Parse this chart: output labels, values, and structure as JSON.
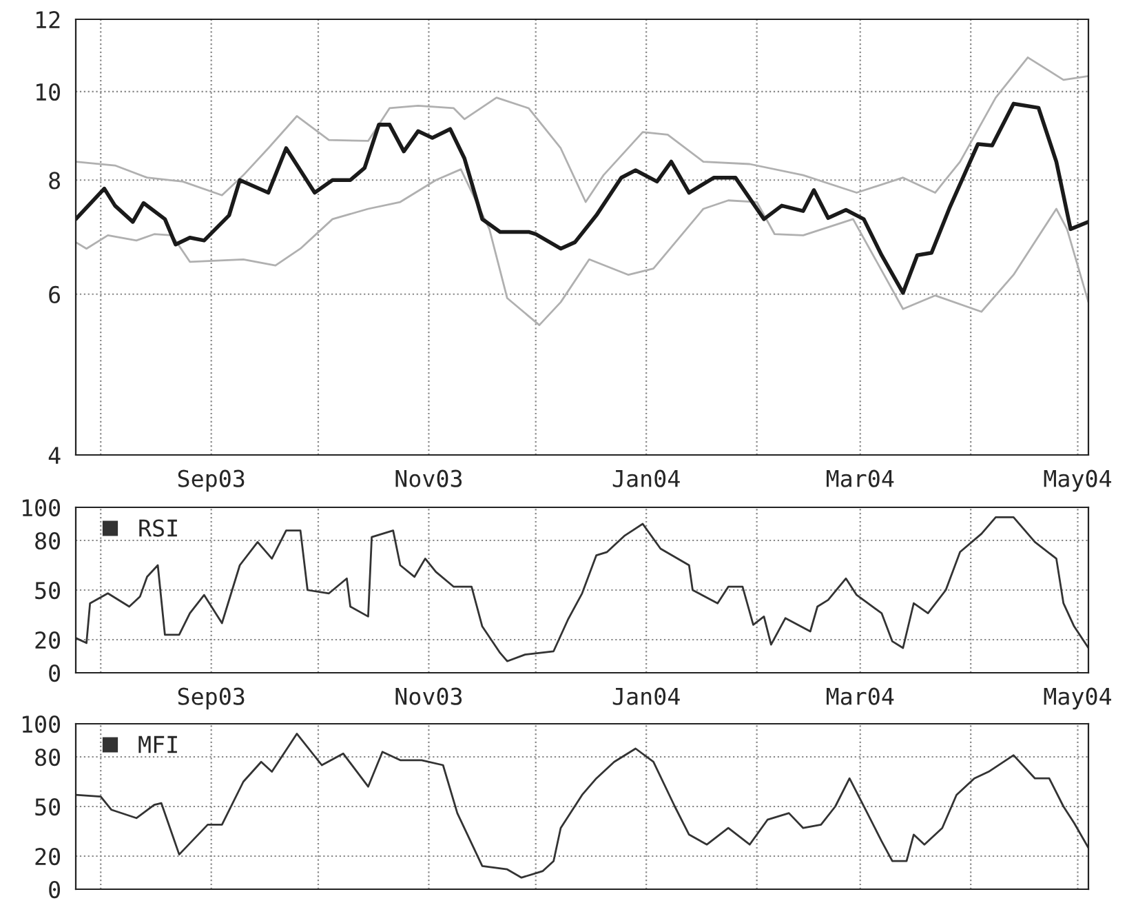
{
  "chart_data": [
    {
      "type": "line",
      "ylim": [
        4,
        12
      ],
      "yticks": [
        4,
        6,
        8,
        10,
        12
      ],
      "log": true,
      "grid": true,
      "marker": "none",
      "line_style": "solid",
      "xlim": [
        "2003-07-25",
        "2004-05-04"
      ],
      "xticks": [
        {
          "value": "2003-08-01",
          "label": null
        },
        {
          "value": "2003-09-01",
          "label": "Sep03"
        },
        {
          "value": "2003-10-01",
          "label": null
        },
        {
          "value": "2003-11-01",
          "label": "Nov03"
        },
        {
          "value": "2003-12-01",
          "label": null
        },
        {
          "value": "2004-01-01",
          "label": "Jan04"
        },
        {
          "value": "2004-02-01",
          "label": null
        },
        {
          "value": "2004-03-01",
          "label": "Mar04"
        },
        {
          "value": "2004-04-01",
          "label": null
        },
        {
          "value": "2004-05-01",
          "label": "May04"
        }
      ],
      "series": [
        {
          "color": "#b0b0b0",
          "x": [
            "2003-07-25",
            "2003-08-05",
            "2003-08-14",
            "2003-08-24",
            "2003-09-04",
            "2003-09-10",
            "2003-09-17",
            "2003-09-25",
            "2003-10-04",
            "2003-10-15",
            "2003-10-21",
            "2003-10-29",
            "2003-11-08",
            "2003-11-11",
            "2003-11-20",
            "2003-11-29",
            "2003-12-08",
            "2003-12-15",
            "2003-12-20",
            "2003-12-31",
            "2004-01-07",
            "2004-01-17",
            "2004-01-30",
            "2004-02-14",
            "2004-02-29",
            "2004-03-13",
            "2004-03-22",
            "2004-03-29",
            "2004-04-08",
            "2004-04-17",
            "2004-04-27",
            "2004-05-04"
          ],
          "values": [
            8.38,
            8.3,
            8.05,
            7.97,
            7.7,
            8.1,
            8.67,
            9.4,
            8.85,
            8.83,
            9.59,
            9.65,
            9.59,
            9.33,
            9.85,
            9.59,
            8.67,
            7.57,
            8.1,
            9.03,
            8.97,
            8.38,
            8.33,
            8.1,
            7.75,
            8.05,
            7.75,
            8.38,
            9.85,
            10.9,
            10.3,
            10.4
          ]
        },
        {
          "color": "#b0b0b0",
          "x": [
            "2003-07-25",
            "2003-07-28",
            "2003-08-03",
            "2003-08-11",
            "2003-08-16",
            "2003-08-21",
            "2003-08-26",
            "2003-09-10",
            "2003-09-19",
            "2003-09-26",
            "2003-10-05",
            "2003-10-15",
            "2003-10-24",
            "2003-11-03",
            "2003-11-10",
            "2003-11-18",
            "2003-11-23",
            "2003-12-02",
            "2003-12-08",
            "2003-12-16",
            "2003-12-27",
            "2004-01-03",
            "2004-01-17",
            "2004-01-24",
            "2004-02-01",
            "2004-02-06",
            "2004-02-14",
            "2004-02-28",
            "2004-03-13",
            "2004-03-22",
            "2004-04-04",
            "2004-04-13",
            "2004-04-25",
            "2004-04-28",
            "2004-05-04"
          ],
          "values": [
            6.84,
            6.73,
            6.96,
            6.87,
            6.98,
            6.96,
            6.51,
            6.55,
            6.45,
            6.73,
            7.25,
            7.44,
            7.57,
            8.0,
            8.22,
            7.07,
            5.94,
            5.55,
            5.88,
            6.55,
            6.3,
            6.4,
            7.44,
            7.6,
            7.57,
            6.98,
            6.96,
            7.25,
            5.78,
            5.98,
            5.74,
            6.3,
            7.44,
            7.07,
            5.88
          ]
        },
        {
          "color": "#1a1a1a",
          "x": [
            "2003-07-25",
            "2003-08-02",
            "2003-08-05",
            "2003-08-10",
            "2003-08-13",
            "2003-08-19",
            "2003-08-22",
            "2003-08-26",
            "2003-08-30",
            "2003-09-06",
            "2003-09-09",
            "2003-09-17",
            "2003-09-22",
            "2003-09-30",
            "2003-10-05",
            "2003-10-10",
            "2003-10-14",
            "2003-10-18",
            "2003-10-21",
            "2003-10-25",
            "2003-10-29",
            "2003-11-02",
            "2003-11-07",
            "2003-11-11",
            "2003-11-16",
            "2003-11-21",
            "2003-11-29",
            "2003-12-01",
            "2003-12-08",
            "2003-12-12",
            "2003-12-18",
            "2003-12-25",
            "2003-12-29",
            "2004-01-04",
            "2004-01-08",
            "2004-01-13",
            "2004-01-20",
            "2004-01-26",
            "2004-02-03",
            "2004-02-08",
            "2004-02-14",
            "2004-02-17",
            "2004-02-21",
            "2004-02-26",
            "2004-03-02",
            "2004-03-07",
            "2004-03-13",
            "2004-03-17",
            "2004-03-21",
            "2004-03-26",
            "2004-04-03",
            "2004-04-07",
            "2004-04-13",
            "2004-04-20",
            "2004-04-25",
            "2004-04-29",
            "2004-05-04"
          ],
          "values": [
            7.25,
            7.83,
            7.5,
            7.2,
            7.55,
            7.25,
            6.8,
            6.92,
            6.87,
            7.32,
            8.0,
            7.75,
            8.67,
            7.75,
            8.0,
            8.0,
            8.25,
            9.2,
            9.2,
            8.6,
            9.05,
            8.9,
            9.1,
            8.45,
            7.25,
            7.02,
            7.02,
            6.98,
            6.73,
            6.84,
            7.32,
            8.05,
            8.2,
            7.97,
            8.38,
            7.75,
            8.05,
            8.05,
            7.25,
            7.5,
            7.4,
            7.8,
            7.27,
            7.42,
            7.25,
            6.62,
            6.02,
            6.62,
            6.66,
            7.45,
            8.76,
            8.73,
            9.7,
            9.6,
            8.38,
            7.07,
            7.2
          ]
        }
      ]
    },
    {
      "type": "line",
      "ylim": [
        0,
        100
      ],
      "yticks": [
        0,
        20,
        50,
        80,
        100
      ],
      "grid": true,
      "marker": "none",
      "line_style": "solid",
      "legend": "top left",
      "xlim": [
        "2003-07-25",
        "2004-05-04"
      ],
      "xticks": [
        {
          "value": "2003-08-01",
          "label": null
        },
        {
          "value": "2003-09-01",
          "label": "Sep03"
        },
        {
          "value": "2003-10-01",
          "label": null
        },
        {
          "value": "2003-11-01",
          "label": "Nov03"
        },
        {
          "value": "2003-12-01",
          "label": null
        },
        {
          "value": "2004-01-01",
          "label": "Jan04"
        },
        {
          "value": "2004-02-01",
          "label": null
        },
        {
          "value": "2004-03-01",
          "label": "Mar04"
        },
        {
          "value": "2004-04-01",
          "label": null
        },
        {
          "value": "2004-05-01",
          "label": "May04"
        }
      ],
      "series": [
        {
          "name": "RSI",
          "color": "#333333",
          "x": [
            "2003-07-25",
            "2003-07-28",
            "2003-07-29",
            "2003-08-03",
            "2003-08-09",
            "2003-08-12",
            "2003-08-14",
            "2003-08-17",
            "2003-08-19",
            "2003-08-23",
            "2003-08-26",
            "2003-08-30",
            "2003-09-04",
            "2003-09-09",
            "2003-09-14",
            "2003-09-18",
            "2003-09-22",
            "2003-09-26",
            "2003-09-28",
            "2003-10-04",
            "2003-10-09",
            "2003-10-10",
            "2003-10-15",
            "2003-10-16",
            "2003-10-22",
            "2003-10-24",
            "2003-10-28",
            "2003-10-31",
            "2003-11-03",
            "2003-11-08",
            "2003-11-13",
            "2003-11-16",
            "2003-11-21",
            "2003-11-23",
            "2003-11-28",
            "2003-12-06",
            "2003-12-10",
            "2003-12-14",
            "2003-12-18",
            "2003-12-21",
            "2003-12-26",
            "2003-12-31",
            "2004-01-05",
            "2004-01-13",
            "2004-01-14",
            "2004-01-21",
            "2004-01-24",
            "2004-01-28",
            "2004-01-31",
            "2004-02-03",
            "2004-02-05",
            "2004-02-09",
            "2004-02-16",
            "2004-02-18",
            "2004-02-21",
            "2004-02-26",
            "2004-02-29",
            "2004-03-07",
            "2004-03-10",
            "2004-03-13",
            "2004-03-16",
            "2004-03-20",
            "2004-03-25",
            "2004-03-29",
            "2004-04-04",
            "2004-04-08",
            "2004-04-13",
            "2004-04-19",
            "2004-04-25",
            "2004-04-27",
            "2004-04-30",
            "2004-05-04"
          ],
          "values": [
            21,
            18,
            42,
            48,
            40,
            46,
            58,
            65,
            23,
            23,
            36,
            47,
            30,
            65,
            79,
            69,
            86,
            86,
            50,
            48,
            57,
            40,
            34,
            82,
            86,
            65,
            58,
            69,
            61,
            52,
            52,
            28,
            12,
            7,
            11,
            13,
            32,
            48,
            71,
            73,
            83,
            90,
            75,
            65,
            50,
            42,
            52,
            52,
            29,
            34,
            17,
            33,
            25,
            40,
            44,
            57,
            47,
            36,
            19,
            15,
            42,
            36,
            50,
            73,
            84,
            94,
            94,
            79,
            69,
            42,
            28,
            15
          ]
        }
      ]
    },
    {
      "type": "line",
      "ylim": [
        0,
        100
      ],
      "yticks": [
        0,
        20,
        50,
        80,
        100
      ],
      "grid": true,
      "marker": "none",
      "line_style": "solid",
      "legend": "top left",
      "tick_labels": "y",
      "xlim": [
        "2003-07-25",
        "2004-05-04"
      ],
      "xticks": [
        {
          "value": "2003-08-01",
          "label": null
        },
        {
          "value": "2003-09-01",
          "label": null
        },
        {
          "value": "2003-10-01",
          "label": null
        },
        {
          "value": "2003-11-01",
          "label": null
        },
        {
          "value": "2003-12-01",
          "label": null
        },
        {
          "value": "2004-01-01",
          "label": null
        },
        {
          "value": "2004-02-01",
          "label": null
        },
        {
          "value": "2004-03-01",
          "label": null
        },
        {
          "value": "2004-04-01",
          "label": null
        },
        {
          "value": "2004-05-01",
          "label": null
        }
      ],
      "series": [
        {
          "name": "MFI",
          "color": "#333333",
          "x": [
            "2003-07-25",
            "2003-08-01",
            "2003-08-04",
            "2003-08-11",
            "2003-08-16",
            "2003-08-18",
            "2003-08-23",
            "2003-08-31",
            "2003-09-04",
            "2003-09-10",
            "2003-09-15",
            "2003-09-18",
            "2003-09-25",
            "2003-10-02",
            "2003-10-08",
            "2003-10-15",
            "2003-10-19",
            "2003-10-24",
            "2003-10-30",
            "2003-11-05",
            "2003-11-09",
            "2003-11-16",
            "2003-11-23",
            "2003-11-27",
            "2003-12-03",
            "2003-12-06",
            "2003-12-08",
            "2003-12-14",
            "2003-12-18",
            "2003-12-23",
            "2003-12-29",
            "2004-01-03",
            "2004-01-09",
            "2004-01-13",
            "2004-01-18",
            "2004-01-24",
            "2004-01-30",
            "2004-02-04",
            "2004-02-10",
            "2004-02-14",
            "2004-02-19",
            "2004-02-23",
            "2004-02-27",
            "2004-03-03",
            "2004-03-07",
            "2004-03-10",
            "2004-03-14",
            "2004-03-16",
            "2004-03-19",
            "2004-03-24",
            "2004-03-28",
            "2004-04-02",
            "2004-04-06",
            "2004-04-13",
            "2004-04-19",
            "2004-04-23",
            "2004-04-27",
            "2004-04-30",
            "2004-05-04"
          ],
          "values": [
            57,
            56,
            48,
            43,
            51,
            52,
            21,
            39,
            39,
            65,
            77,
            71,
            94,
            75,
            82,
            62,
            83,
            78,
            78,
            75,
            46,
            14,
            12,
            7,
            11,
            17,
            37,
            57,
            67,
            77,
            85,
            77,
            50,
            33,
            27,
            37,
            27,
            42,
            46,
            37,
            39,
            50,
            67,
            46,
            29,
            17,
            17,
            33,
            27,
            37,
            57,
            67,
            71,
            81,
            67,
            67,
            50,
            40,
            25
          ]
        }
      ]
    }
  ]
}
